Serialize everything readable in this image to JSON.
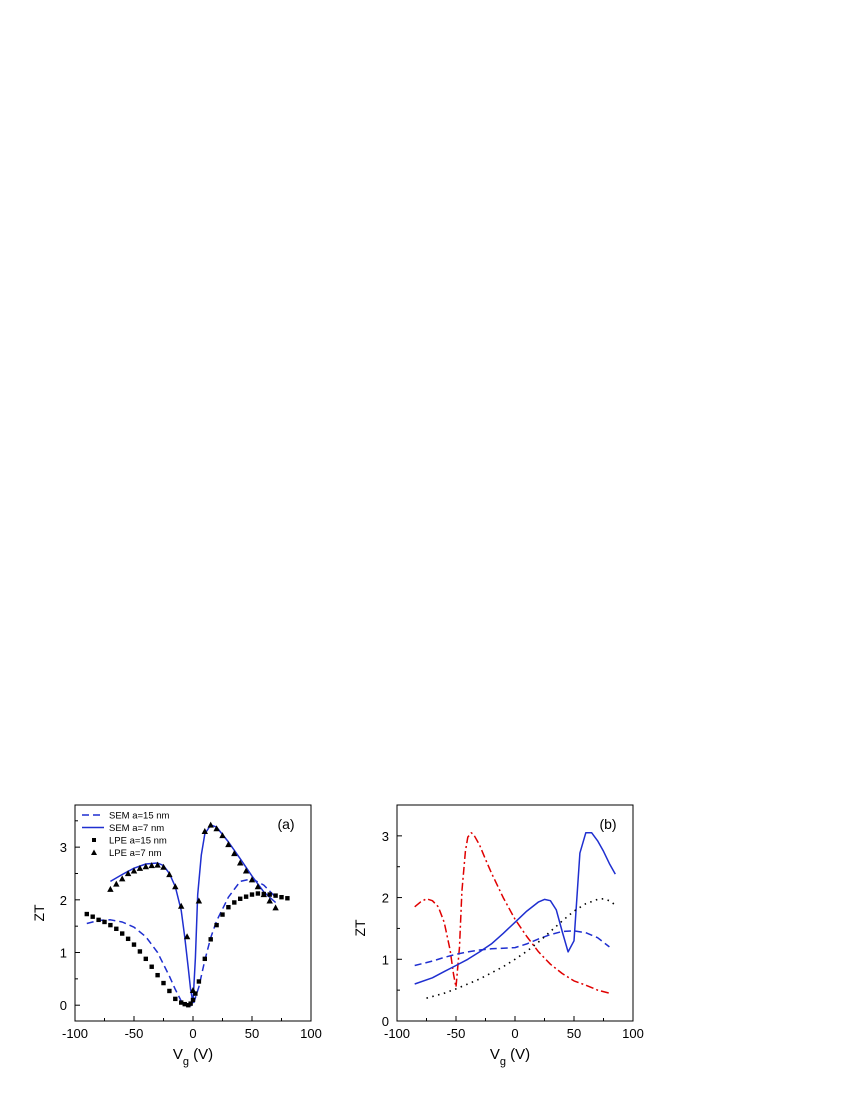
{
  "chart_data": [
    {
      "type": "line",
      "panel_label": "(a)",
      "xlabel": "V",
      "xlabel_sub": "g",
      "xlabel_unit": " (V)",
      "ylabel": "ZT",
      "xlim": [
        -100,
        100
      ],
      "ylim": [
        -0.3,
        3.8
      ],
      "xticks": [
        -100,
        -50,
        0,
        50,
        100
      ],
      "yticks": [
        0,
        1,
        2,
        3
      ],
      "legend": "top-left",
      "series": [
        {
          "name": "SEM a=15 nm",
          "style": "dashed",
          "color": "#1f2fd0",
          "x": [
            -90,
            -80,
            -70,
            -60,
            -50,
            -40,
            -30,
            -20,
            -15,
            -10,
            -5,
            0,
            5,
            10,
            15,
            20,
            30,
            40,
            50,
            60,
            70
          ],
          "y": [
            1.55,
            1.61,
            1.62,
            1.58,
            1.48,
            1.3,
            1.0,
            0.55,
            0.3,
            0.08,
            -0.02,
            0.0,
            0.35,
            0.85,
            1.28,
            1.6,
            2.05,
            2.35,
            2.4,
            2.28,
            2.05
          ]
        },
        {
          "name": "SEM a=7 nm",
          "style": "solid",
          "color": "#1f2fd0",
          "x": [
            -70,
            -60,
            -50,
            -40,
            -30,
            -25,
            -20,
            -15,
            -10,
            -7,
            -4,
            -2,
            0,
            2,
            4,
            7,
            10,
            15,
            20,
            30,
            40,
            50,
            60,
            70
          ],
          "y": [
            2.35,
            2.48,
            2.6,
            2.68,
            2.7,
            2.65,
            2.5,
            2.25,
            1.8,
            1.3,
            0.7,
            0.3,
            0.05,
            0.9,
            2.1,
            2.85,
            3.25,
            3.42,
            3.38,
            3.1,
            2.78,
            2.45,
            2.15,
            1.95
          ]
        },
        {
          "name": "LPE a=15 nm",
          "style": "square",
          "color": "#000000",
          "x": [
            -90,
            -85,
            -80,
            -75,
            -70,
            -65,
            -60,
            -55,
            -50,
            -45,
            -40,
            -35,
            -30,
            -25,
            -20,
            -15,
            -10,
            -7,
            -4,
            -2,
            0,
            2,
            5,
            10,
            15,
            20,
            25,
            30,
            35,
            40,
            45,
            50,
            55,
            60,
            65,
            70,
            75,
            80
          ],
          "y": [
            1.73,
            1.68,
            1.62,
            1.58,
            1.52,
            1.45,
            1.36,
            1.26,
            1.15,
            1.02,
            0.88,
            0.73,
            0.57,
            0.42,
            0.27,
            0.12,
            0.05,
            0.02,
            0.0,
            0.03,
            0.1,
            0.22,
            0.45,
            0.88,
            1.25,
            1.52,
            1.72,
            1.86,
            1.95,
            2.02,
            2.06,
            2.1,
            2.12,
            2.11,
            2.1,
            2.08,
            2.05,
            2.03
          ]
        },
        {
          "name": "LPE a=7 nm",
          "style": "triangle",
          "color": "#000000",
          "x": [
            -70,
            -65,
            -60,
            -55,
            -50,
            -45,
            -40,
            -35,
            -30,
            -25,
            -20,
            -15,
            -10,
            -5,
            0,
            5,
            10,
            15,
            20,
            25,
            30,
            35,
            40,
            45,
            50,
            55,
            60,
            65,
            70
          ],
          "y": [
            2.2,
            2.3,
            2.4,
            2.5,
            2.55,
            2.6,
            2.63,
            2.65,
            2.66,
            2.62,
            2.48,
            2.25,
            1.88,
            1.3,
            0.28,
            1.98,
            3.3,
            3.42,
            3.35,
            3.22,
            3.05,
            2.88,
            2.7,
            2.55,
            2.38,
            2.25,
            2.1,
            1.98,
            1.85
          ]
        }
      ]
    },
    {
      "type": "line",
      "panel_label": "(b)",
      "xlabel": "V",
      "xlabel_sub": "g",
      "xlabel_unit": " (V)",
      "ylabel": "ZT",
      "xlim": [
        -100,
        100
      ],
      "ylim": [
        0,
        3.5
      ],
      "xticks": [
        -100,
        -50,
        0,
        50,
        100
      ],
      "yticks": [
        0,
        1,
        2,
        3
      ],
      "series": [
        {
          "style": "dashdot",
          "color": "#e00000",
          "x": [
            -85,
            -80,
            -75,
            -70,
            -65,
            -60,
            -55,
            -52,
            -50,
            -47,
            -45,
            -42,
            -40,
            -37,
            -35,
            -30,
            -25,
            -20,
            -10,
            0,
            10,
            20,
            30,
            40,
            50,
            60,
            70,
            80
          ],
          "y": [
            1.85,
            1.93,
            1.98,
            1.95,
            1.85,
            1.6,
            1.15,
            0.75,
            0.55,
            1.2,
            2.1,
            2.75,
            2.98,
            3.05,
            3.02,
            2.85,
            2.62,
            2.4,
            2.0,
            1.65,
            1.37,
            1.12,
            0.92,
            0.77,
            0.65,
            0.58,
            0.5,
            0.45
          ]
        },
        {
          "style": "solid",
          "color": "#1f2fd0",
          "x": [
            -85,
            -70,
            -60,
            -50,
            -40,
            -30,
            -20,
            -10,
            0,
            10,
            20,
            25,
            30,
            35,
            40,
            45,
            50,
            55,
            60,
            65,
            70,
            75,
            80,
            85
          ],
          "y": [
            0.6,
            0.7,
            0.8,
            0.9,
            1.0,
            1.12,
            1.25,
            1.42,
            1.6,
            1.78,
            1.93,
            1.97,
            1.95,
            1.8,
            1.45,
            1.12,
            1.3,
            2.72,
            3.05,
            3.05,
            2.92,
            2.75,
            2.55,
            2.38
          ]
        },
        {
          "style": "dashed",
          "color": "#1f2fd0",
          "x": [
            -85,
            -70,
            -60,
            -50,
            -40,
            -30,
            -20,
            -10,
            0,
            10,
            20,
            30,
            40,
            50,
            60,
            70,
            80
          ],
          "y": [
            0.9,
            0.97,
            1.03,
            1.08,
            1.12,
            1.15,
            1.17,
            1.18,
            1.19,
            1.25,
            1.33,
            1.4,
            1.45,
            1.46,
            1.43,
            1.35,
            1.2
          ]
        },
        {
          "style": "dotted",
          "color": "#000000",
          "x": [
            -75,
            -60,
            -50,
            -40,
            -30,
            -20,
            -10,
            0,
            10,
            20,
            30,
            40,
            50,
            60,
            70,
            75,
            80,
            85
          ],
          "y": [
            0.37,
            0.45,
            0.52,
            0.6,
            0.68,
            0.78,
            0.88,
            1.0,
            1.13,
            1.28,
            1.45,
            1.62,
            1.78,
            1.9,
            1.97,
            1.98,
            1.95,
            1.88
          ]
        }
      ]
    }
  ]
}
